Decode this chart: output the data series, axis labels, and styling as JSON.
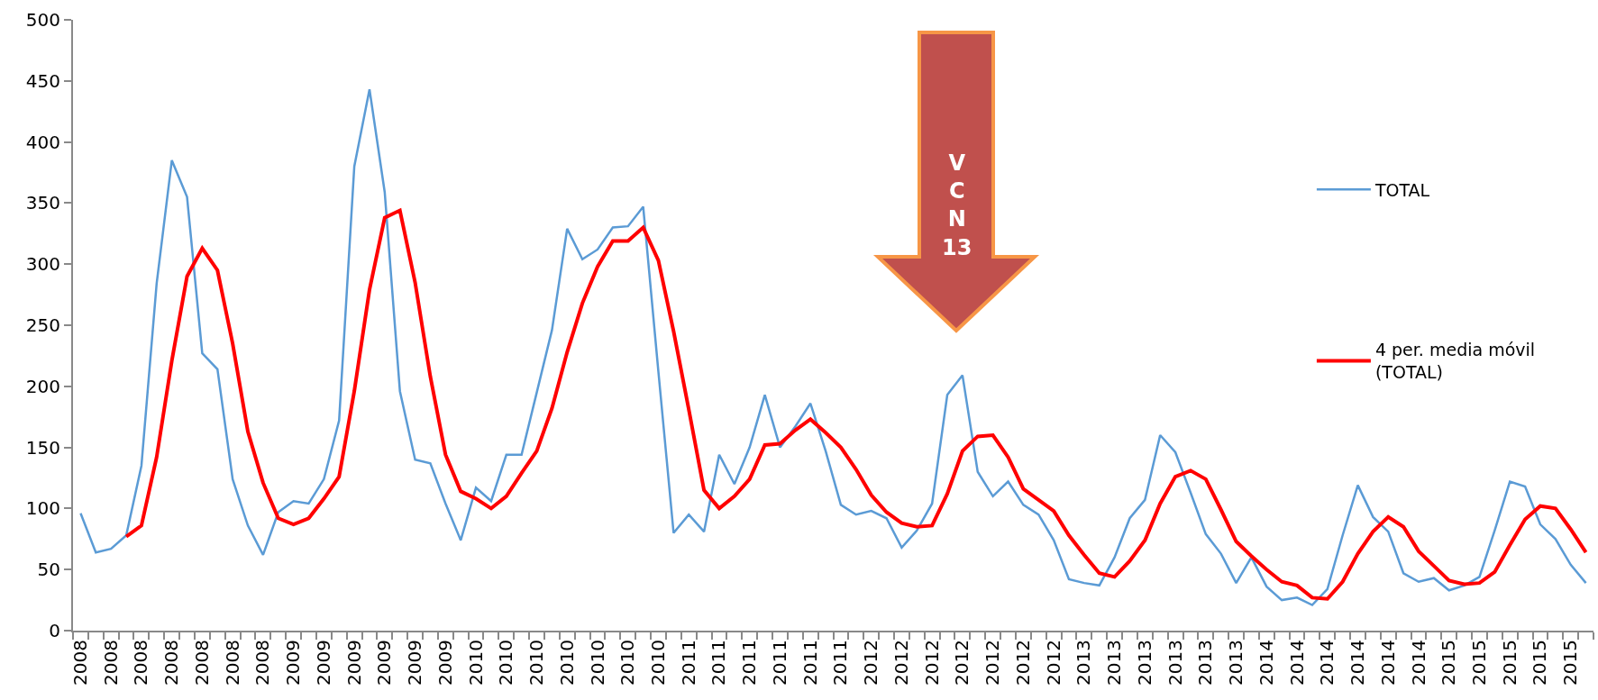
{
  "chart_data": {
    "type": "line",
    "categories": [
      "2008",
      null,
      "2008",
      null,
      "2008",
      null,
      "2008",
      null,
      "2008",
      null,
      "2008",
      null,
      "2008",
      null,
      "2009",
      null,
      "2009",
      null,
      "2009",
      null,
      "2009",
      null,
      "2009",
      null,
      "2009",
      null,
      "2010",
      null,
      "2010",
      null,
      "2010",
      null,
      "2010",
      null,
      "2010",
      null,
      "2010",
      null,
      "2010",
      null,
      "2011",
      null,
      "2011",
      null,
      "2011",
      null,
      "2011",
      null,
      "2011",
      null,
      "2011",
      null,
      "2012",
      null,
      "2012",
      null,
      "2012",
      null,
      "2012",
      null,
      "2012",
      null,
      "2012",
      null,
      "2012",
      null,
      "2013",
      null,
      "2013",
      null,
      "2013",
      null,
      "2013",
      null,
      "2013",
      null,
      "2013",
      null,
      "2014",
      null,
      "2014",
      null,
      "2014",
      null,
      "2014",
      null,
      "2014",
      null,
      "2014",
      null,
      "2015",
      null,
      "2015",
      null,
      "2015",
      null,
      "2015",
      null,
      "2015",
      null
    ],
    "series": [
      {
        "name": "TOTAL",
        "color": "#5b9bd5",
        "values": [
          96,
          64,
          67,
          78,
          135,
          284,
          385,
          355,
          227,
          214,
          124,
          86,
          62,
          97,
          106,
          104,
          124,
          172,
          380,
          443,
          359,
          196,
          140,
          137,
          104,
          74,
          117,
          106,
          144,
          144,
          195,
          246,
          329,
          304,
          312,
          330,
          331,
          347,
          212,
          80,
          95,
          81,
          144,
          120,
          150,
          193,
          150,
          167,
          186,
          147,
          103,
          95,
          98,
          92,
          68,
          82,
          104,
          193,
          209,
          130,
          110,
          122,
          103,
          95,
          74,
          42,
          39,
          37,
          60,
          92,
          107,
          160,
          146,
          113,
          79,
          63,
          39,
          60,
          36,
          25,
          27,
          21,
          34,
          78,
          119,
          93,
          81,
          47,
          40,
          43,
          33,
          37,
          44,
          82,
          122,
          118,
          87,
          75,
          54,
          39
        ]
      },
      {
        "name": "4 per. media móvil (TOTAL)",
        "color": "#ff0000",
        "values": [
          null,
          null,
          null,
          77,
          86,
          142,
          221,
          290,
          313,
          295,
          235,
          163,
          121,
          92,
          87,
          92,
          108,
          126,
          196,
          279,
          338,
          344,
          285,
          208,
          144,
          114,
          108,
          100,
          110,
          129,
          147,
          182,
          228,
          268,
          298,
          319,
          319,
          330,
          303,
          245,
          181,
          115,
          100,
          110,
          124,
          152,
          153,
          164,
          173,
          162,
          150,
          132,
          111,
          97,
          88,
          85,
          86,
          112,
          147,
          159,
          160,
          142,
          116,
          107,
          98,
          78,
          62,
          47,
          44,
          57,
          74,
          104,
          126,
          131,
          124,
          99,
          73,
          61,
          50,
          40,
          37,
          27,
          26,
          40,
          63,
          81,
          93,
          85,
          65,
          53,
          41,
          38,
          39,
          48,
          70,
          91,
          102,
          100,
          83,
          64
        ]
      }
    ],
    "ylim": [
      0,
      500
    ],
    "yticks": [
      0,
      50,
      100,
      150,
      200,
      250,
      300,
      350,
      400,
      450,
      500
    ],
    "legend": "right",
    "annotations": [
      "V\nC\nN\n13"
    ]
  }
}
